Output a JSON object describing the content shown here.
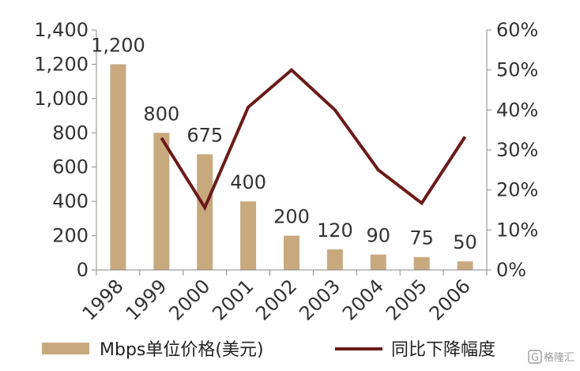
{
  "chart_data": {
    "type": "bar",
    "categories": [
      "1998",
      "1999",
      "2000",
      "2001",
      "2002",
      "2003",
      "2004",
      "2005",
      "2006"
    ],
    "series": [
      {
        "name": "Mbps单位价格(美元)",
        "type": "bar",
        "axis": "left",
        "values": [
          1200,
          800,
          675,
          400,
          200,
          120,
          90,
          75,
          50
        ],
        "data_labels": [
          "1,200",
          "800",
          "675",
          "400",
          "200",
          "120",
          "90",
          "75",
          "50"
        ],
        "color": "#c8a97e"
      },
      {
        "name": "同比下降幅度",
        "type": "line",
        "axis": "right",
        "values": [
          null,
          0.33,
          0.156,
          0.407,
          0.5,
          0.4,
          0.25,
          0.167,
          0.333
        ],
        "color": "#6b1a1a"
      }
    ],
    "y_left": {
      "ylim": [
        0,
        1400
      ],
      "ticks": [
        0,
        200,
        400,
        600,
        800,
        1000,
        1200,
        1400
      ],
      "tick_labels": [
        "0",
        "200",
        "400",
        "600",
        "800",
        "1,000",
        "1,200",
        "1,400"
      ]
    },
    "y_right": {
      "ylim": [
        0,
        0.6
      ],
      "ticks": [
        0,
        0.1,
        0.2,
        0.3,
        0.4,
        0.5,
        0.6
      ],
      "tick_labels": [
        "0%",
        "10%",
        "20%",
        "30%",
        "40%",
        "50%",
        "60%"
      ]
    },
    "grid": false,
    "legend_position": "bottom"
  },
  "watermark": {
    "icon": "G",
    "text": "格隆汇"
  }
}
